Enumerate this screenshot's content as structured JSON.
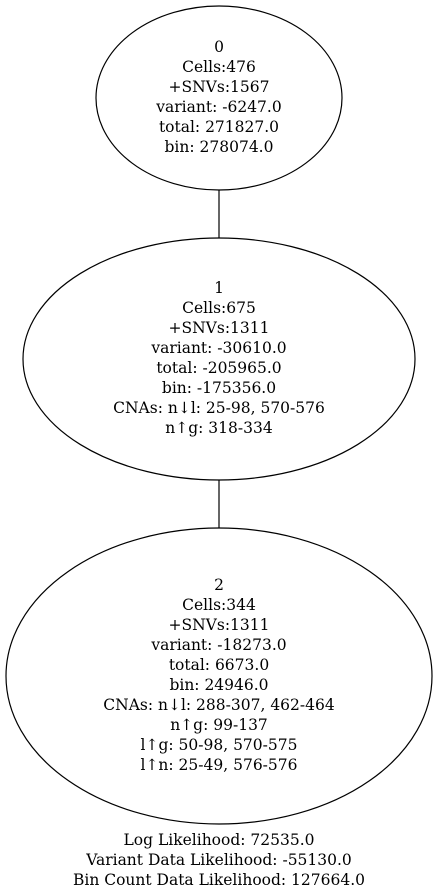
{
  "nodes": [
    {
      "id": "0",
      "lines": [
        "0",
        "Cells:476",
        "+SNVs:1567",
        "variant: -6247.0",
        "total: 271827.0",
        "bin: 278074.0"
      ]
    },
    {
      "id": "1",
      "lines": [
        "1",
        "Cells:675",
        "+SNVs:1311",
        "variant: -30610.0",
        "total: -205965.0",
        "bin: -175356.0",
        "CNAs: n↓l: 25-98, 570-576",
        "n↑g: 318-334"
      ]
    },
    {
      "id": "2",
      "lines": [
        "2",
        "Cells:344",
        "+SNVs:1311",
        "variant: -18273.0",
        "total: 6673.0",
        "bin: 24946.0",
        "CNAs: n↓l: 288-307, 462-464",
        "n↑g: 99-137",
        "l↑g: 50-98, 570-575",
        "l↑n: 25-49, 576-576"
      ]
    }
  ],
  "edges": [
    {
      "from": "0",
      "to": "1"
    },
    {
      "from": "1",
      "to": "2"
    }
  ],
  "summary": {
    "log_likelihood": "Log Likelihood: 72535.0",
    "variant_likelihood": "Variant Data Likelihood: -55130.0",
    "bin_count_likelihood": "Bin Count Data Likelihood: 127664.0"
  }
}
